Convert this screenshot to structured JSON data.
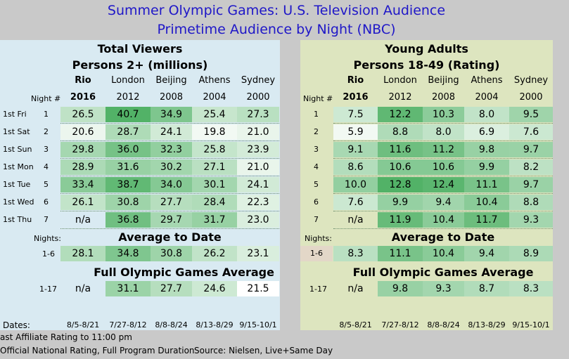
{
  "title1": "Summer Olympic Games: U.S. Television Audience",
  "title2": "Primetime Audience by Night (NBC)",
  "left": {
    "head1": "Total Viewers",
    "head2": "Persons 2+ (millions)",
    "avg_head": "Average to Date",
    "full_head": "Full Olympic Games Average",
    "row_labels": [
      "1st Fri",
      "1st Sat",
      "1st Sun",
      "1st Mon",
      "1st Tue",
      "1st Wed",
      "1st Thu"
    ]
  },
  "right": {
    "head1": "Young Adults",
    "head2": "Persons 18-49 (Rating)"
  },
  "labels": {
    "night": "Night #",
    "nights": "Nights:",
    "dates": "Dates:",
    "avg_range": "1-6",
    "full_range": "1-17"
  },
  "columns": [
    {
      "name": "Rio",
      "year": "2016",
      "dates": "8/5-8/21"
    },
    {
      "name": "London",
      "year": "2012",
      "dates": "7/27-8/12"
    },
    {
      "name": "Beijing",
      "year": "2008",
      "dates": "8/8-8/24"
    },
    {
      "name": "Athens",
      "year": "2004",
      "dates": "8/13-8/29"
    },
    {
      "name": "Sydney",
      "year": "2000",
      "dates": "9/15-10/1"
    }
  ],
  "chart_data": [
    {
      "type": "table",
      "title": "Total Viewers",
      "subtitle": "Persons 2+ (millions)",
      "columns": [
        "Rio 2016",
        "London 2012",
        "Beijing 2008",
        "Athens 2004",
        "Sydney 2000"
      ],
      "nights": [
        "1",
        "2",
        "3",
        "4",
        "5",
        "6",
        "7"
      ],
      "rows": [
        [
          "26.5",
          "40.7",
          "34.9",
          "25.4",
          "27.3"
        ],
        [
          "20.6",
          "28.7",
          "24.1",
          "19.8",
          "21.0"
        ],
        [
          "29.8",
          "36.0",
          "32.3",
          "25.8",
          "23.9"
        ],
        [
          "28.9",
          "31.6",
          "30.2",
          "27.1",
          "21.0"
        ],
        [
          "33.4",
          "38.7",
          "34.0",
          "30.1",
          "24.1"
        ],
        [
          "26.1",
          "30.8",
          "27.7",
          "28.4",
          "22.3"
        ],
        [
          "n/a",
          "36.8",
          "29.7",
          "31.7",
          "23.0"
        ]
      ],
      "average_to_date": [
        "28.1",
        "34.8",
        "30.8",
        "26.2",
        "23.1"
      ],
      "full_average": [
        "n/a",
        "31.1",
        "27.7",
        "24.6",
        "21.5"
      ]
    },
    {
      "type": "table",
      "title": "Young Adults",
      "subtitle": "Persons 18-49 (Rating)",
      "columns": [
        "Rio 2016",
        "London 2012",
        "Beijing 2008",
        "Athens 2004",
        "Sydney 2000"
      ],
      "nights": [
        "1",
        "2",
        "3",
        "4",
        "5",
        "6",
        "7"
      ],
      "rows": [
        [
          "7.5",
          "12.2",
          "10.3",
          "8.0",
          "9.5"
        ],
        [
          "5.9",
          "8.8",
          "8.0",
          "6.9",
          "7.6"
        ],
        [
          "9.1",
          "11.6",
          "11.2",
          "9.8",
          "9.7"
        ],
        [
          "8.6",
          "10.6",
          "10.6",
          "9.9",
          "8.2"
        ],
        [
          "10.0",
          "12.8",
          "12.4",
          "11.1",
          "9.7"
        ],
        [
          "7.6",
          "9.9",
          "9.4",
          "10.4",
          "8.8"
        ],
        [
          "n/a",
          "11.9",
          "10.4",
          "11.7",
          "9.3"
        ]
      ],
      "average_to_date": [
        "8.3",
        "11.1",
        "10.4",
        "9.4",
        "8.9"
      ],
      "full_average": [
        "n/a",
        "9.8",
        "9.3",
        "8.7",
        "8.3"
      ]
    }
  ],
  "footnotes": {
    "note1": "ast Affiliate Rating to 11:00 pm",
    "note2": "Official National Rating, Full Program Duration",
    "source": "Source: Nielsen, Live+Same Day"
  }
}
